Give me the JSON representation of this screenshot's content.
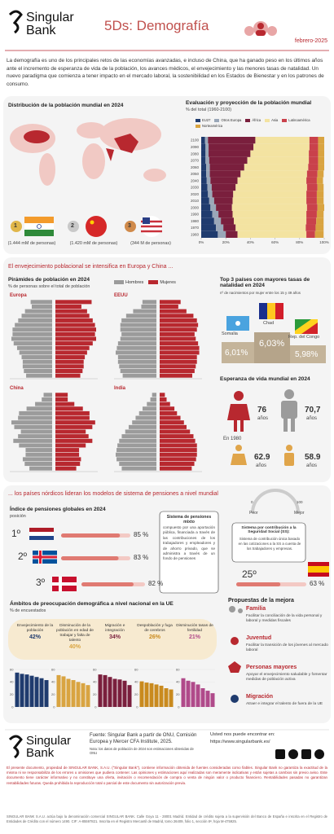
{
  "header": {
    "brand": "Singular Bank",
    "title": "5Ds: Demografía",
    "date": "febrero-2025"
  },
  "intro": "La demografía es uno de los principales retos de las economías avanzadas, e incluso de China, que ha ganado peso en los últimos años ante el incremento de esperanza de vida de la población, los avances médicos, el envejecimiento y las menores tasas de natalidad. Un nuevo paradigma que comienza a tener impacto en el mercado laboral, la sostenibilidad en los Estados de Bienestar y en los patrones de consumo.",
  "world": {
    "title": "Distribución de la población mundial en 2024",
    "ranks": [
      {
        "medal": "1",
        "label": "(1.444 mM de personas)"
      },
      {
        "medal": "2",
        "label": "(1.420 mM de personas)"
      },
      {
        "medal": "3",
        "label": "(344 M de personas)"
      }
    ]
  },
  "projection": {
    "title": "Evaluación y proyección de la población mundial",
    "subtitle": "% del total (1960-2100)",
    "years": [
      1960,
      1970,
      1980,
      1990,
      2000,
      2010,
      2020,
      2030,
      2040,
      2050,
      2060,
      2070,
      2080,
      2090,
      2100
    ],
    "xlim": [
      0,
      100
    ],
    "xticks": [
      {
        "value": 0,
        "label": "0%"
      },
      {
        "value": 20,
        "label": "20%"
      },
      {
        "value": 40,
        "label": "40%"
      },
      {
        "value": 60,
        "label": "60%"
      },
      {
        "value": 80,
        "label": "80%"
      },
      {
        "value": 100,
        "label": "100%"
      }
    ],
    "series": [
      {
        "name": "EU27",
        "color": "#1f3b6e",
        "values": [
          13.5,
          12,
          10.5,
          9,
          7.5,
          6.5,
          5.5,
          5,
          4.5,
          4,
          4,
          3.5,
          3.5,
          3.5,
          3
        ]
      },
      {
        "name": "Otros Europa",
        "color": "#9aa7b8",
        "values": [
          6.5,
          6,
          5.5,
          5,
          4.5,
          4,
          3.5,
          3.5,
          3,
          3,
          3,
          3,
          2.5,
          2.5,
          2.5
        ]
      },
      {
        "name": "África",
        "color": "#7a1f3d",
        "values": [
          9.5,
          10,
          10.5,
          11.5,
          13,
          15,
          17,
          19.5,
          22,
          25,
          28,
          31,
          34,
          36.5,
          38.5
        ]
      },
      {
        "name": "Asia",
        "color": "#f3e3a1",
        "values": [
          56,
          57,
          59,
          60,
          61,
          60,
          59.5,
          58,
          56,
          54,
          52,
          50,
          47.5,
          45.5,
          44
        ]
      },
      {
        "name": "Latinoamérica",
        "color": "#c9414b",
        "values": [
          7,
          8,
          8,
          8.5,
          8.5,
          8.5,
          8.5,
          8.5,
          8.5,
          8.5,
          8,
          7.5,
          7.5,
          7,
          7
        ]
      },
      {
        "name": "Norteamérica",
        "color": "#d9a441",
        "values": [
          7,
          6.5,
          6,
          5.5,
          5.5,
          5.5,
          5.5,
          5,
          5,
          5,
          5,
          5,
          5,
          5,
          5
        ]
      }
    ]
  },
  "aging": {
    "title": "El envejecimiento poblacional se intensifica en Europa y China ...",
    "pyramids": {
      "title": "Pirámides de población en 2024",
      "subtitle": "% de personas sobre el total de población",
      "legend": [
        {
          "name": "Hombres",
          "color": "#9b9b9b"
        },
        {
          "name": "Mujeres",
          "color": "#b8282f"
        }
      ],
      "charts": [
        {
          "name": "Europa",
          "men": [
            2.3,
            2.5,
            2.6,
            2.6,
            2.7,
            2.9,
            3.1,
            3.4,
            3.6,
            3.5,
            3.5,
            3.3,
            3.0,
            2.7,
            2.4,
            1.8,
            1.9
          ],
          "women": [
            2.2,
            2.4,
            2.5,
            2.5,
            2.6,
            2.8,
            3.0,
            3.3,
            3.6,
            3.5,
            3.6,
            3.5,
            3.3,
            3.0,
            2.8,
            2.3,
            3.2
          ]
        },
        {
          "name": "EEUU",
          "men": [
            2.9,
            3.1,
            3.2,
            3.3,
            3.3,
            3.5,
            3.4,
            3.3,
            3.1,
            3.0,
            3.1,
            3.1,
            3.0,
            2.6,
            2.0,
            1.3,
            1.2
          ],
          "women": [
            2.8,
            3.0,
            3.1,
            3.2,
            3.2,
            3.4,
            3.4,
            3.3,
            3.1,
            3.0,
            3.2,
            3.3,
            3.2,
            2.9,
            2.3,
            1.6,
            1.8
          ]
        },
        {
          "name": "China",
          "men": [
            2.4,
            2.9,
            3.1,
            2.8,
            2.8,
            3.5,
            4.1,
            3.6,
            3.3,
            4.0,
            4.3,
            3.6,
            3.5,
            2.7,
            1.8,
            1.1,
            0.9
          ],
          "women": [
            2.2,
            2.6,
            2.7,
            2.5,
            2.5,
            3.2,
            3.9,
            3.5,
            3.2,
            3.9,
            4.2,
            3.6,
            3.6,
            2.9,
            2.0,
            1.3,
            1.3
          ]
        },
        {
          "name": "India",
          "men": [
            4.0,
            4.3,
            4.6,
            4.7,
            4.6,
            4.5,
            4.3,
            4.0,
            3.6,
            3.2,
            2.8,
            2.4,
            2.0,
            1.6,
            1.1,
            0.7,
            0.5
          ],
          "women": [
            3.7,
            4.0,
            4.2,
            4.3,
            4.3,
            4.3,
            4.1,
            3.9,
            3.5,
            3.1,
            2.8,
            2.4,
            2.0,
            1.7,
            1.2,
            0.8,
            0.6
          ]
        }
      ]
    },
    "natality": {
      "title": "Top 3 países con mayores tasas de natalidad en 2024",
      "subtitle": "nº de nacimientos por mujer entre los 15 y 49 años",
      "countries": [
        {
          "name": "Somalia",
          "value": 6.01,
          "value_label": "6,01%"
        },
        {
          "name": "Chad",
          "value": 6.03,
          "value_label": "6,03%"
        },
        {
          "name": "Rep. del Congo",
          "value": 5.98,
          "value_label": "5,98%"
        }
      ]
    },
    "life": {
      "title": "Esperanza de vida mundial en 2024",
      "past": "En 1980",
      "unit": "años",
      "items": [
        {
          "value": 76,
          "label": "76"
        },
        {
          "value": 70.7,
          "label": "70,7"
        },
        {
          "value": 62.9,
          "label": "62.9"
        },
        {
          "value": 58.9,
          "label": "58.9"
        }
      ]
    }
  },
  "pensions": {
    "section_title": "... los países nórdicos lideran los modelos de sistema de pensiones a nivel mundial",
    "title": "Índice de pensiones globales en 2024",
    "subtitle": "posición",
    "xlim": [
      0,
      100
    ],
    "ranks": [
      {
        "position": "1º",
        "value": 85,
        "value_label": "85 %"
      },
      {
        "position": "2º",
        "value": 83,
        "value_label": "83 %"
      },
      {
        "position": "3º",
        "value": 82,
        "value_label": "82 %"
      }
    ],
    "box_title": "Sistema de pensiones mixto",
    "box_text": "compuesto por una aportación pública, financiada a través de las contribuciones de los trabajadores y empleadores y de ahorro privado, que se administra a través de un fondo de pensiones",
    "scale": {
      "worse": "Peor",
      "better": "Mejor",
      "min": 0,
      "max": 100
    },
    "spain": {
      "box_title": "Sistema por contribución a la Seguridad Social (SS):",
      "box_text": "Sistema de contribución única basado en las cotizaciones a la SS a cuenta de los trabajadores y empresas.",
      "position": "25º",
      "value": 63,
      "value_label": "63 %"
    }
  },
  "concerns": {
    "title": "Ámbitos de preocupación demográfica a nivel nacional en la UE",
    "subtitle": "% de encuestados",
    "items": [
      {
        "label": "Envejecimiento de la población",
        "value": 42,
        "value_label": "42%",
        "color": "#1f3b6e"
      },
      {
        "label": "Disminución de la población en edad de trabajar y falta de talento",
        "value": 40,
        "value_label": "40%",
        "color": "#d9a441"
      },
      {
        "label": "Migración e integración",
        "value": 34,
        "value_label": "34%",
        "color": "#7a1f3d"
      },
      {
        "label": "Despoblación y fuga de cerebros",
        "value": 26,
        "value_label": "26%",
        "color": "#c98a1e"
      },
      {
        "label": "Disminución tasas de fertilidad",
        "value": 21,
        "value_label": "21%",
        "color": "#b04a8a"
      }
    ],
    "ylim": [
      0,
      60
    ],
    "yticks": [
      0,
      20,
      40,
      60
    ],
    "charts": [
      [
        55,
        53,
        52,
        50,
        48,
        46,
        43
      ],
      [
        51,
        49,
        45,
        43,
        40,
        38,
        35
      ],
      [
        52,
        51,
        48,
        45,
        44,
        42,
        35
      ],
      [
        41,
        39,
        38,
        36,
        34,
        30,
        28
      ],
      [
        46,
        42,
        40,
        36,
        30,
        26,
        22
      ]
    ]
  },
  "proposals": {
    "title": "Propuestas de la mejora",
    "items": [
      {
        "name": "Familia",
        "text": "Facilitar la conciliación de la vida personal y laboral y medidas fiscales"
      },
      {
        "name": "Juventud",
        "text": "Facilitar la transición de los jóvenes al mercado laboral"
      },
      {
        "name": "Personas mayores",
        "text": "Apoyar el envejecimiento saludable y fomentar medidas de población activa"
      },
      {
        "name": "Migración",
        "text": "Atraer e integrar el talento de fuera de la UE"
      }
    ]
  },
  "footer": {
    "brand": "Singular Bank",
    "source": "Fuente: Singular Bank a partir de ONU, Comisión Europea y Mercer CFA Institute, 2025.",
    "note": "Nota: los datos de población de 2024 son estimaciones obtenidas de ONU",
    "web_label": "Usted nos puede encontrar en:",
    "web": "https://www.singularbank.es/",
    "disclaimer": "El presente documento, propiedad de SINGULAR BANK, S.A.U. (\"Singular Bank\"), contiene información obtenida de fuentes consideradas como fiables. Singular Bank no garantiza la exactitud de la misma ni se responsabiliza de los errores u omisiones que pudiera contener. Las opiniones y estimaciones aquí realizadas son meramente indicativas y están sujetas a cambios sin previo aviso. Este documento tiene carácter informativo y no constituye una oferta, invitación o recomendación de compra o venta de ningún valor o producto financiero. Rentabilidades pasadas no garantizan rentabilidades futuras. Queda prohibida la reproducción total o parcial de este documento sin autorización previa.",
    "legal": "SINGULAR BANK S.A.U. actúa bajo la denominación comercial SINGULAR BANK. Calle Goya 11 - 28001 Madrid. Entidad de crédito sujeta a la supervisión del Banco de España e inscrita en el Registro de Entidades de Crédito con el número 1490. CIF: A-85597821. Inscrita en el Registro Mercantil de Madrid, tomo 26409, folio 1, sección 8ª, hoja M-475925."
  }
}
